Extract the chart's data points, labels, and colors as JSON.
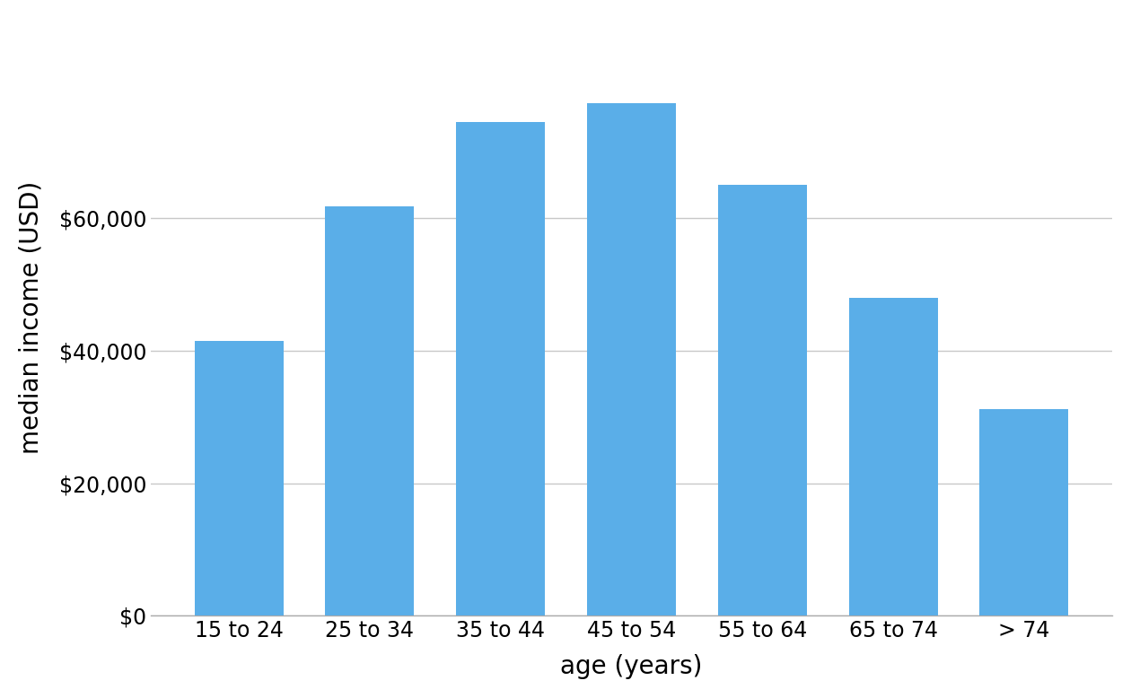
{
  "categories": [
    "15 to 24",
    "25 to 34",
    "35 to 44",
    "45 to 54",
    "55 to 64",
    "65 to 74",
    "> 74"
  ],
  "values": [
    41401,
    61755,
    74379,
    77212,
    65010,
    47982,
    31200
  ],
  "bar_color": "#5aaee8",
  "xlabel": "age (years)",
  "ylabel": "median income (USD)",
  "ylim": [
    0,
    90000
  ],
  "yticks": [
    0,
    20000,
    40000,
    60000
  ],
  "ytick_labels": [
    "$0",
    "$20,000",
    "$40,000",
    "$60,000"
  ],
  "background_color": "#ffffff",
  "grid_color": "#c8c8c8",
  "xlabel_fontsize": 20,
  "ylabel_fontsize": 20,
  "xtick_fontsize": 17,
  "ytick_fontsize": 17,
  "bar_width": 0.68
}
